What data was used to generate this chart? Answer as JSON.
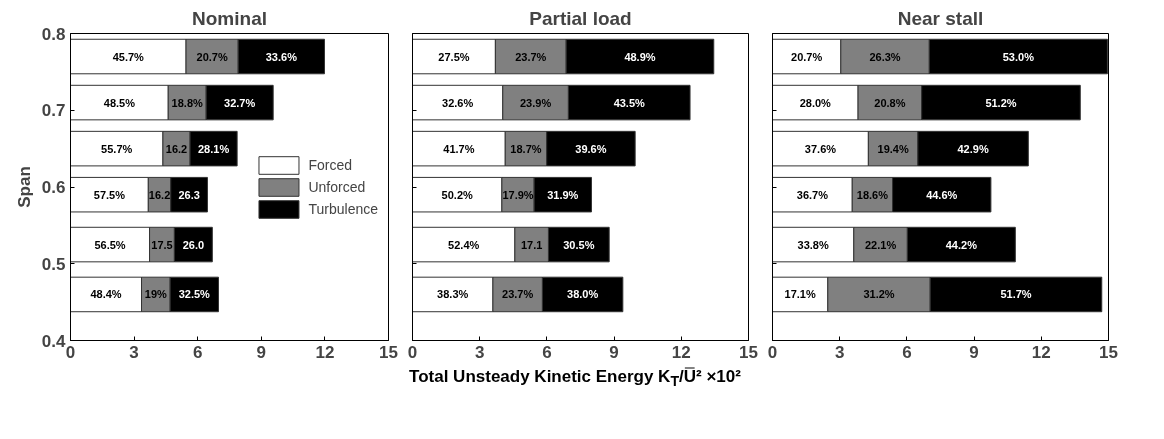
{
  "chart_data": [
    {
      "type": "bar",
      "orientation": "horizontal",
      "stacked": true,
      "title": "Nominal",
      "ylabel": "Span",
      "x": [
        0.77,
        0.71,
        0.65,
        0.59,
        0.525,
        0.46
      ],
      "xlim": [
        0,
        15
      ],
      "xticks": [
        0,
        3,
        6,
        9,
        12,
        15
      ],
      "ylim": [
        0.4,
        0.8
      ],
      "yticks": [
        0.4,
        0.5,
        0.6,
        0.7,
        0.8
      ],
      "legend": "right",
      "grid": false,
      "series": [
        {
          "name": "Forced",
          "color": "#ffffff",
          "values": [
            5.45,
            4.61,
            4.36,
            3.67,
            3.73,
            3.35
          ]
        },
        {
          "name": "Unforced",
          "color": "#808080",
          "values": [
            2.46,
            1.79,
            1.28,
            1.06,
            1.17,
            1.35
          ]
        },
        {
          "name": "Turbulence",
          "color": "#000000",
          "values": [
            4.07,
            3.16,
            2.22,
            1.73,
            1.79,
            2.28
          ]
        }
      ],
      "annotations": [
        "45.7%",
        "20.7%",
        "33.6%",
        "48.5%",
        "18.8%",
        "32.7%",
        "55.7%",
        "16.2",
        "28.1%",
        "57.5%",
        "16.2",
        "26.3",
        "56.5%",
        "17.5",
        "26.0",
        "48.4%",
        "19%",
        "32.5%"
      ]
    },
    {
      "type": "bar",
      "orientation": "horizontal",
      "stacked": true,
      "title": "Partial load",
      "xlabel": "Total Unsteady Kinetic Energy  K$_{T}$/U̿² ×10²",
      "x": [
        0.77,
        0.71,
        0.65,
        0.59,
        0.525,
        0.46
      ],
      "xlim": [
        0,
        15
      ],
      "xticks": [
        0,
        3,
        6,
        9,
        12,
        15
      ],
      "ylim": [
        0.4,
        0.8
      ],
      "yticks": [
        0.4,
        0.5,
        0.6,
        0.7,
        0.8
      ],
      "tick_labels": "x",
      "grid": false,
      "series": [
        {
          "color": "#ffffff",
          "values": [
            3.7,
            4.03,
            4.14,
            3.99,
            4.57,
            3.59
          ]
        },
        {
          "color": "#808080",
          "values": [
            3.16,
            2.93,
            1.85,
            1.44,
            1.5,
            2.21
          ]
        },
        {
          "color": "#000000",
          "values": [
            6.59,
            5.43,
            3.95,
            2.56,
            2.71,
            3.59
          ]
        }
      ],
      "annotations": [
        "27.5%",
        "23.7%",
        "48.9%",
        "32.6%",
        "23.9%",
        "43.5%",
        "41.7%",
        "18.7%",
        "39.6%",
        "50.2%",
        "17.9%",
        "31.9%",
        "52.4%",
        "17.1",
        "30.5%",
        "38.3%",
        "23.7%",
        "38.0%"
      ]
    },
    {
      "type": "bar",
      "orientation": "horizontal",
      "stacked": true,
      "title": "Near stall",
      "x": [
        0.77,
        0.71,
        0.65,
        0.59,
        0.525,
        0.46
      ],
      "xlim": [
        0,
        15
      ],
      "xticks": [
        0,
        3,
        6,
        9,
        12,
        15
      ],
      "ylim": [
        0.4,
        0.8
      ],
      "yticks": [
        0.4,
        0.5,
        0.6,
        0.7,
        0.8
      ],
      "tick_labels": "x",
      "grid": false,
      "series": [
        {
          "color": "#ffffff",
          "values": [
            3.05,
            3.82,
            4.28,
            3.56,
            3.63,
            2.47
          ]
        },
        {
          "color": "#808080",
          "values": [
            3.95,
            2.84,
            2.21,
            1.8,
            2.39,
            4.57
          ]
        },
        {
          "color": "#000000",
          "values": [
            7.95,
            7.08,
            4.93,
            4.39,
            4.82,
            7.66
          ]
        }
      ],
      "annotations": [
        "20.7%",
        "26.3%",
        "53.0%",
        "28.0%",
        "20.8%",
        "51.2%",
        "37.6%",
        "19.4%",
        "42.9%",
        "36.7%",
        "18.6%",
        "44.6%",
        "33.8%",
        "22.1%",
        "44.2%",
        "17.1%",
        "31.2%",
        "51.7%"
      ]
    }
  ]
}
